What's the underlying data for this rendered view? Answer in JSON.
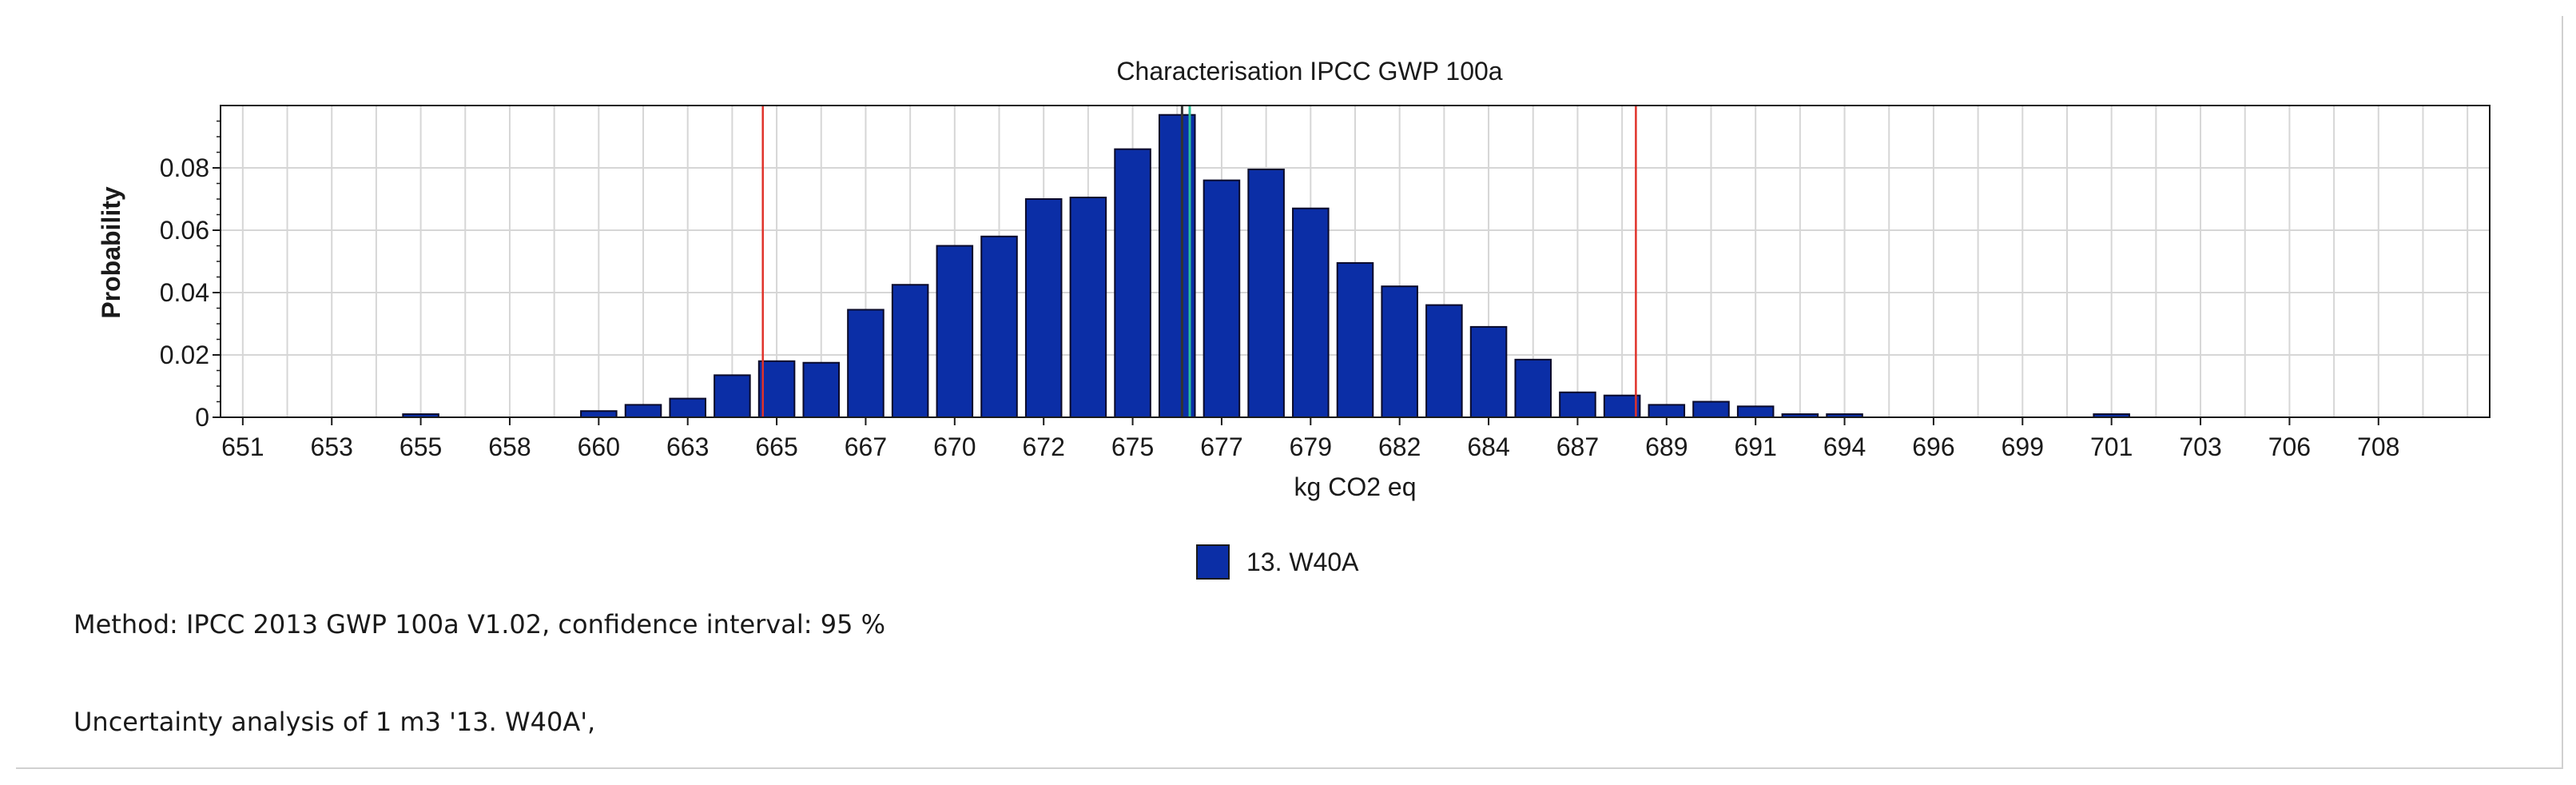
{
  "chart_data": {
    "type": "bar",
    "title": "Characterisation IPCC GWP 100a",
    "xlabel": "kg CO2 eq",
    "ylabel": "Probability",
    "ylim": [
      0,
      0.1
    ],
    "y_ticks": [
      "0",
      "0.02",
      "0.04",
      "0.06",
      "0.08"
    ],
    "y_tick_values": [
      0,
      0.02,
      0.04,
      0.06,
      0.08
    ],
    "x_tick_labels": [
      "651",
      "653",
      "655",
      "658",
      "660",
      "663",
      "665",
      "667",
      "670",
      "672",
      "675",
      "677",
      "679",
      "682",
      "684",
      "687",
      "689",
      "691",
      "694",
      "696",
      "699",
      "701",
      "703",
      "706",
      "708"
    ],
    "grid": true,
    "legend": "bottom-center",
    "series": [
      {
        "name": "13. W40A",
        "color": "#0b2ea6",
        "values": [
          0,
          0,
          0,
          0,
          0.001,
          0,
          0,
          0,
          0.002,
          0.004,
          0.006,
          0.0135,
          0.018,
          0.0175,
          0.0345,
          0.0425,
          0.055,
          0.058,
          0.07,
          0.0705,
          0.086,
          0.097,
          0.076,
          0.0795,
          0.067,
          0.0495,
          0.042,
          0.036,
          0.029,
          0.0185,
          0.008,
          0.007,
          0.004,
          0.005,
          0.0035,
          0.001,
          0.001,
          0,
          0,
          0,
          0,
          0,
          0.001,
          0,
          0,
          0,
          0,
          0,
          0,
          0,
          0
        ]
      }
    ],
    "bin_range": [
      650.5,
      709.5
    ],
    "confidence_interval_bounds": [
      664.6,
      687.3
    ],
    "confidence_line_color": "#e0322a",
    "center_lines": [
      675.5,
      675.7
    ],
    "center_line_colors": [
      "#333333",
      "#2bbf9a"
    ]
  },
  "notes": {
    "method": "Method: IPCC 2013 GWP 100a V1.02, confidence interval: 95 %",
    "analysis": "Uncertainty analysis of 1 m3 '13. W40A',"
  }
}
